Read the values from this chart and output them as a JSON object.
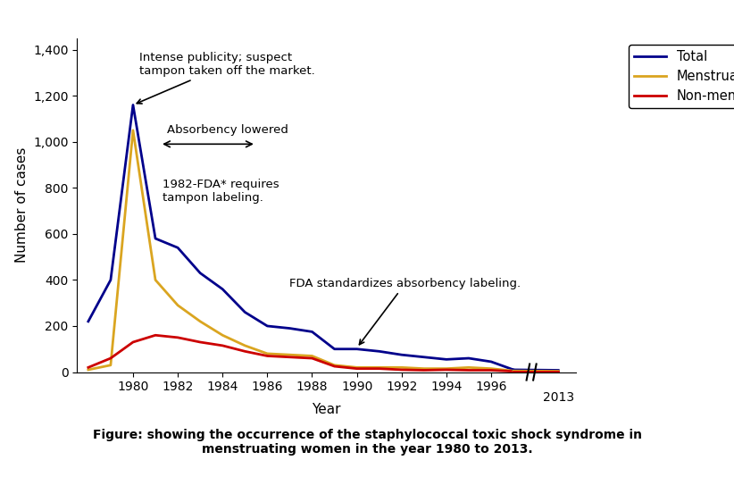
{
  "years_main": [
    1978,
    1979,
    1980,
    1981,
    1982,
    1983,
    1984,
    1985,
    1986,
    1987,
    1988,
    1989,
    1990,
    1991,
    1992,
    1993,
    1994,
    1995,
    1996,
    1997
  ],
  "total": [
    220,
    400,
    1160,
    580,
    540,
    430,
    360,
    260,
    200,
    190,
    175,
    100,
    100,
    90,
    75,
    65,
    55,
    60,
    45,
    10
  ],
  "menstrual": [
    10,
    30,
    1050,
    400,
    290,
    220,
    160,
    115,
    80,
    75,
    70,
    30,
    20,
    20,
    20,
    15,
    15,
    20,
    15,
    5
  ],
  "nonmenstrual": [
    20,
    60,
    130,
    160,
    150,
    130,
    115,
    90,
    70,
    65,
    60,
    25,
    15,
    15,
    10,
    8,
    10,
    8,
    8,
    3
  ],
  "total_2013": 8,
  "menstrual_2013": 4,
  "nonmenstrual_2013": 3,
  "total_color": "#00008B",
  "menstrual_color": "#DAA520",
  "nonmenstrual_color": "#CC0000",
  "ylabel": "Number of cases",
  "xlabel": "Year",
  "ylim": [
    0,
    1450
  ],
  "yticks": [
    0,
    200,
    400,
    600,
    800,
    1000,
    1200,
    1400
  ],
  "ytick_labels": [
    "0",
    "200",
    "400",
    "600",
    "800",
    "1,000",
    "1,200",
    "1,400"
  ],
  "background_color": "#ffffff",
  "linewidth": 2.0,
  "figure_caption_line1": "Figure: showing the occurrence of the staphylococcal toxic shock syndrome in",
  "figure_caption_line2": "menstruating women in the year 1980 to 2013."
}
